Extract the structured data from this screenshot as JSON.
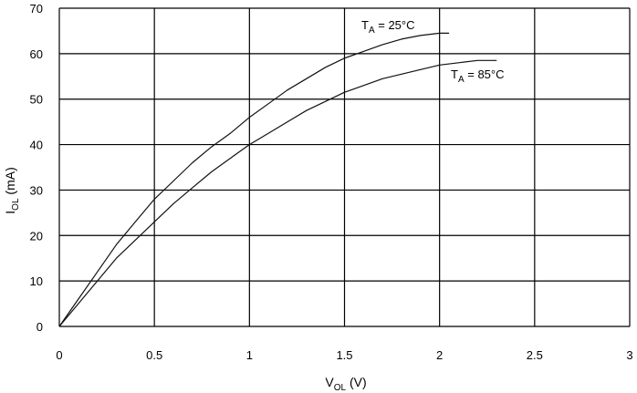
{
  "chart_data": {
    "type": "line",
    "xlabel": {
      "main": "V",
      "sub": "OL",
      "unit": " (V)"
    },
    "ylabel": {
      "main": "I",
      "sub": "OL",
      "unit": " (mA)"
    },
    "xlim": [
      0,
      3
    ],
    "ylim": [
      0,
      70
    ],
    "x_ticks": [
      "0",
      "0.5",
      "1",
      "1.5",
      "2",
      "2.5",
      "3"
    ],
    "y_ticks": [
      "0",
      "10",
      "20",
      "30",
      "40",
      "50",
      "60",
      "70"
    ],
    "grid": true,
    "series": [
      {
        "name": {
          "main": "T",
          "sub": "A",
          "rest": " = 25°C"
        },
        "x": [
          0,
          0.1,
          0.2,
          0.3,
          0.4,
          0.5,
          0.6,
          0.7,
          0.8,
          0.9,
          1.0,
          1.1,
          1.2,
          1.3,
          1.4,
          1.5,
          1.6,
          1.7,
          1.8,
          1.9,
          2.0,
          2.05
        ],
        "y": [
          0,
          6,
          12,
          18,
          23,
          28,
          32,
          36,
          39.5,
          42.5,
          46,
          49,
          52,
          54.5,
          57,
          59,
          60.5,
          62,
          63.2,
          64,
          64.5,
          64.5
        ]
      },
      {
        "name": {
          "main": "T",
          "sub": "A",
          "rest": " = 85°C"
        },
        "x": [
          0,
          0.1,
          0.2,
          0.3,
          0.4,
          0.5,
          0.6,
          0.7,
          0.8,
          0.9,
          1.0,
          1.1,
          1.2,
          1.3,
          1.4,
          1.5,
          1.6,
          1.7,
          1.8,
          1.9,
          2.0,
          2.1,
          2.2,
          2.3
        ],
        "y": [
          0,
          5,
          10,
          15,
          19,
          23,
          27,
          30.5,
          34,
          37,
          40,
          42.5,
          45,
          47.5,
          49.5,
          51.5,
          53,
          54.5,
          55.5,
          56.5,
          57.5,
          58,
          58.5,
          58.5
        ]
      }
    ]
  }
}
